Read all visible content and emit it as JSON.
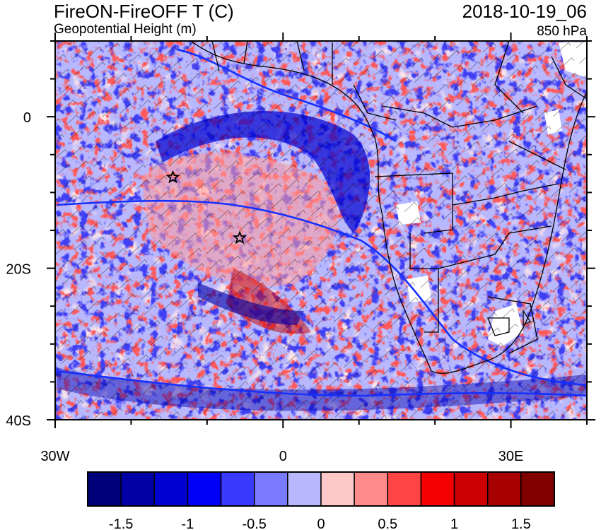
{
  "header": {
    "title_left": "FireON-FireOFF T (C)",
    "subtitle_left": "Geopotential Height (m)",
    "title_right": "2018-10-19_06",
    "subtitle_right": "850 hPa"
  },
  "map": {
    "lon_range": [
      -30,
      40
    ],
    "lat_range": [
      -40,
      10
    ],
    "x_tick_labels": [
      "30W",
      "0",
      "30E"
    ],
    "y_tick_labels": [
      "0",
      "20S",
      "40S"
    ],
    "markers": [
      {
        "name": "star-marker",
        "lon": -14.5,
        "lat": -8.0
      },
      {
        "name": "star-marker",
        "lon": -5.7,
        "lat": -16.0
      }
    ]
  },
  "colorbar": {
    "colors": [
      "#00007a",
      "#0000a6",
      "#0000d0",
      "#0000f8",
      "#3a3aff",
      "#7a7aff",
      "#b8b8ff",
      "#ffc8c8",
      "#ff8a8a",
      "#ff4444",
      "#f40000",
      "#cc0000",
      "#a80000",
      "#800000"
    ],
    "labels": [
      "-1.5",
      "-1",
      "-0.5",
      "0",
      "0.5",
      "1",
      "1.5"
    ]
  }
}
